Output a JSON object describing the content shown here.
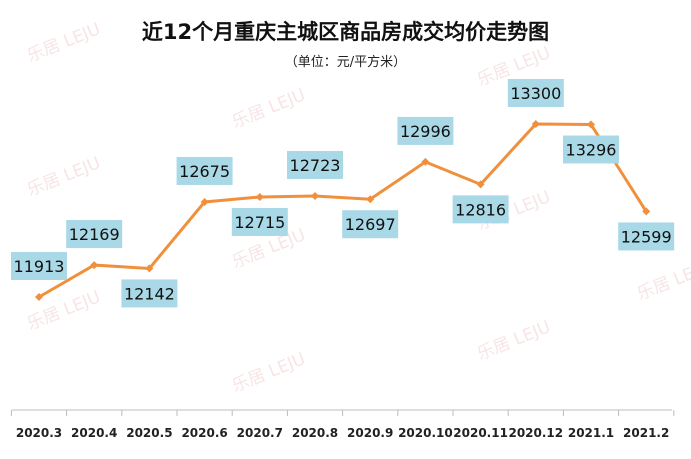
{
  "chart_data": {
    "type": "line",
    "title": "近12个月重庆主城区商品房成交均价走势图",
    "subtitle": "（单位：元/平方米）",
    "categories": [
      "2020.3",
      "2020.4",
      "2020.5",
      "2020.6",
      "2020.7",
      "2020.8",
      "2020.9",
      "2020.10",
      "2020.11",
      "2020.12",
      "2021.1",
      "2021.2"
    ],
    "values": [
      11913,
      12169,
      12142,
      12675,
      12715,
      12723,
      12697,
      12996,
      12816,
      13300,
      13296,
      12599
    ],
    "xlabel": "",
    "ylabel": "",
    "grid": false,
    "legend": "none",
    "line_color": "#f0903c",
    "label_bg": "#a9d8e6",
    "watermark": "乐居 LEJU"
  }
}
